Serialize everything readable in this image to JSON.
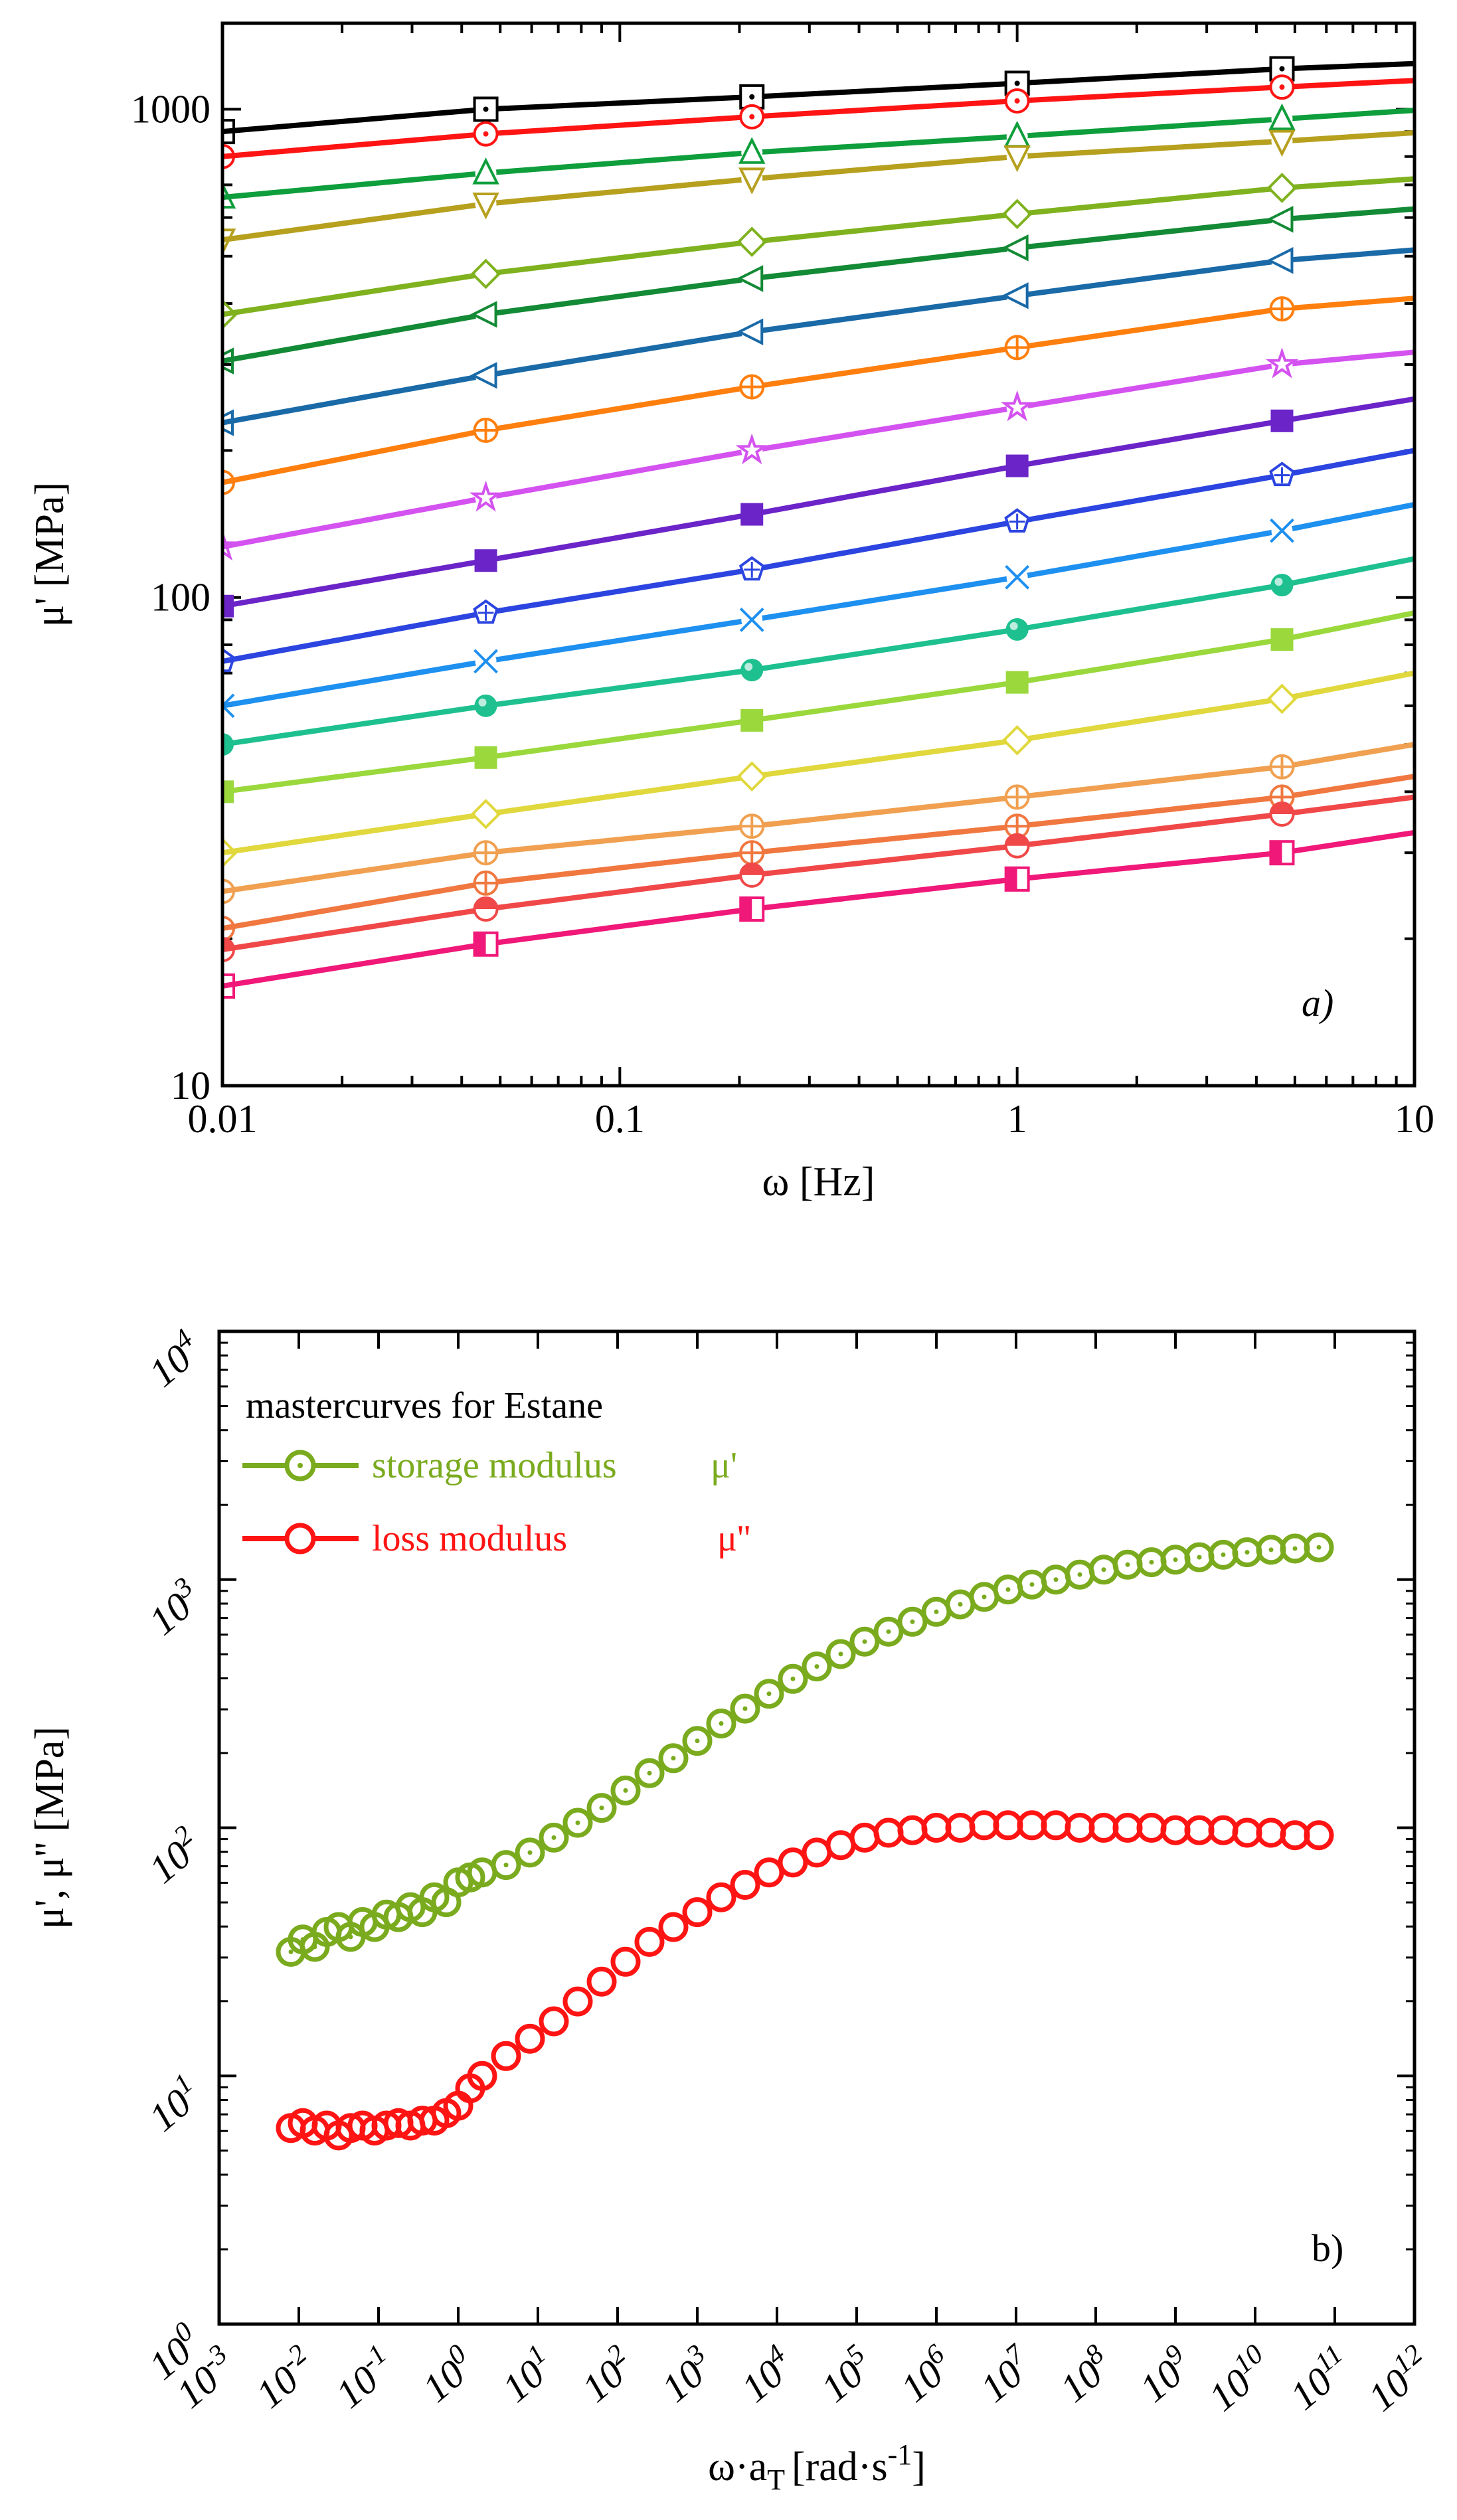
{
  "chart_data": [
    {
      "type": "line",
      "panel_label": "a)",
      "xlabel": "ω [Hz]",
      "ylabel": "μ' [MPa]",
      "xscale": "log",
      "yscale": "log",
      "xlim": [
        0.01,
        10
      ],
      "ylim": [
        10,
        1500
      ],
      "x_tick_labels": [
        "0.01",
        "0.1",
        "1",
        "10"
      ],
      "y_tick_labels": [
        "10",
        "100",
        "1000"
      ],
      "marker_x": [
        0.01,
        0.046,
        0.215,
        1.0,
        4.64
      ],
      "series": [
        {
          "color": "#000000",
          "marker": "square-dot",
          "values": [
            900,
            1000,
            1060,
            1130,
            1210,
            1240
          ]
        },
        {
          "color": "#ff1414",
          "marker": "circle-dot",
          "values": [
            800,
            890,
            965,
            1040,
            1110,
            1145
          ]
        },
        {
          "color": "#0e9e3c",
          "marker": "triangle-up",
          "values": [
            660,
            740,
            815,
            880,
            955,
            995
          ]
        },
        {
          "color": "#b6a01e",
          "marker": "triangle-down",
          "values": [
            540,
            640,
            720,
            800,
            860,
            895
          ]
        },
        {
          "color": "#7fb21e",
          "marker": "diamond",
          "values": [
            380,
            460,
            535,
            610,
            690,
            720
          ]
        },
        {
          "color": "#138a35",
          "marker": "triangle-left",
          "values": [
            305,
            380,
            450,
            520,
            595,
            625
          ]
        },
        {
          "color": "#1a6aa8",
          "marker": "triangle-left",
          "values": [
            228,
            285,
            350,
            415,
            490,
            515
          ]
        },
        {
          "color": "#ff7f0e",
          "marker": "circle-plus",
          "values": [
            172,
            220,
            270,
            325,
            390,
            410
          ]
        },
        {
          "color": "#d452f0",
          "marker": "star",
          "values": [
            127,
            160,
            200,
            245,
            300,
            318
          ]
        },
        {
          "color": "#6b24c8",
          "marker": "square",
          "values": [
            96,
            119,
            148,
            186,
            230,
            255
          ]
        },
        {
          "color": "#2c45e0",
          "marker": "pentagon",
          "values": [
            74,
            93,
            114,
            143,
            178,
            200
          ]
        },
        {
          "color": "#1e90f0",
          "marker": "x",
          "values": [
            60,
            74,
            90,
            110,
            137,
            155
          ]
        },
        {
          "color": "#1ec090",
          "marker": "sphere",
          "values": [
            50,
            60,
            71,
            86,
            106,
            120
          ]
        },
        {
          "color": "#9ad83c",
          "marker": "square",
          "values": [
            40,
            47,
            56,
            67,
            82,
            93
          ]
        },
        {
          "color": "#e0d83c",
          "marker": "diamond",
          "values": [
            30,
            36,
            43,
            51,
            62,
            70
          ]
        },
        {
          "color": "#f0a050",
          "marker": "circle-plus",
          "values": [
            25,
            30,
            34,
            39,
            45,
            50
          ]
        },
        {
          "color": "#f07840",
          "marker": "circle-plus",
          "values": [
            21,
            26,
            30,
            34,
            39,
            43
          ]
        },
        {
          "color": "#f04848",
          "marker": "circle-half",
          "values": [
            19,
            23,
            27,
            31,
            36,
            39
          ]
        },
        {
          "color": "#f01878",
          "marker": "square-half",
          "values": [
            16,
            19.5,
            23,
            26.5,
            30,
            33
          ]
        }
      ]
    },
    {
      "type": "scatter",
      "panel_label": "b)",
      "xlabel": "ω·a",
      "xlabel_sub": "T",
      "xlabel_units": "[rad·s",
      "xlabel_sup": "-1",
      "xlabel_close": "]",
      "ylabel": "μ', μ'' [MPa]",
      "xscale": "log",
      "yscale": "log",
      "xlim_exp": [
        -3,
        12
      ],
      "ylim_exp": [
        0,
        4
      ],
      "x_tick_exps": [
        "-3",
        "-2",
        "-1",
        "0",
        "1",
        "2",
        "3",
        "4",
        "5",
        "6",
        "7",
        "8",
        "9",
        "10",
        "11",
        "12"
      ],
      "y_tick_exps": [
        "0",
        "1",
        "2",
        "3",
        "4"
      ],
      "tick_base": "10",
      "legend": {
        "title": "mastercurves for Estane",
        "items": [
          {
            "label": "storage modulus",
            "symbol": "μ'",
            "color": "#7aab1e"
          },
          {
            "label": "loss modulus",
            "symbol": "μ''",
            "color": "#ff1414"
          }
        ]
      },
      "series": [
        {
          "name": "storage modulus μ'",
          "color": "#7aab1e",
          "x_log": [
            -2.1,
            -1.95,
            -1.8,
            -1.65,
            -1.5,
            -1.35,
            -1.2,
            -1.05,
            -0.9,
            -0.75,
            -0.6,
            -0.45,
            -0.3,
            -0.15,
            0.0,
            0.15,
            0.3,
            0.6,
            0.9,
            1.2,
            1.5,
            1.8,
            2.1,
            2.4,
            2.7,
            3.0,
            3.3,
            3.6,
            3.9,
            4.2,
            4.5,
            4.8,
            5.1,
            5.4,
            5.7,
            6.0,
            6.3,
            6.6,
            6.9,
            7.2,
            7.5,
            7.8,
            8.1,
            8.4,
            8.7,
            9.0,
            9.3,
            9.6,
            9.9,
            10.2,
            10.5,
            10.8
          ],
          "y_log": [
            1.5,
            1.55,
            1.52,
            1.58,
            1.6,
            1.56,
            1.62,
            1.6,
            1.65,
            1.64,
            1.68,
            1.66,
            1.72,
            1.7,
            1.78,
            1.8,
            1.82,
            1.85,
            1.9,
            1.96,
            2.02,
            2.08,
            2.15,
            2.22,
            2.28,
            2.35,
            2.42,
            2.48,
            2.54,
            2.6,
            2.65,
            2.7,
            2.75,
            2.79,
            2.83,
            2.87,
            2.9,
            2.93,
            2.96,
            2.98,
            3.0,
            3.02,
            3.04,
            3.06,
            3.07,
            3.08,
            3.09,
            3.1,
            3.11,
            3.12,
            3.125,
            3.13
          ]
        },
        {
          "name": "loss modulus μ''",
          "color": "#ff1414",
          "x_log": [
            -2.1,
            -1.95,
            -1.8,
            -1.65,
            -1.5,
            -1.35,
            -1.2,
            -1.05,
            -0.9,
            -0.75,
            -0.6,
            -0.45,
            -0.3,
            -0.15,
            0.0,
            0.15,
            0.3,
            0.6,
            0.9,
            1.2,
            1.5,
            1.8,
            2.1,
            2.4,
            2.7,
            3.0,
            3.3,
            3.6,
            3.9,
            4.2,
            4.5,
            4.8,
            5.1,
            5.4,
            5.7,
            6.0,
            6.3,
            6.6,
            6.9,
            7.2,
            7.5,
            7.8,
            8.1,
            8.4,
            8.7,
            9.0,
            9.3,
            9.6,
            9.9,
            10.2,
            10.5,
            10.8
          ],
          "y_log": [
            0.79,
            0.81,
            0.78,
            0.8,
            0.76,
            0.79,
            0.8,
            0.78,
            0.8,
            0.81,
            0.8,
            0.82,
            0.82,
            0.85,
            0.88,
            0.95,
            1.0,
            1.08,
            1.15,
            1.22,
            1.3,
            1.38,
            1.46,
            1.54,
            1.6,
            1.66,
            1.72,
            1.77,
            1.82,
            1.86,
            1.9,
            1.93,
            1.96,
            1.98,
            1.99,
            2.0,
            2.0,
            2.01,
            2.01,
            2.01,
            2.01,
            2.0,
            2.0,
            2.0,
            2.0,
            1.99,
            1.99,
            1.99,
            1.98,
            1.98,
            1.97,
            1.97
          ]
        }
      ]
    }
  ]
}
